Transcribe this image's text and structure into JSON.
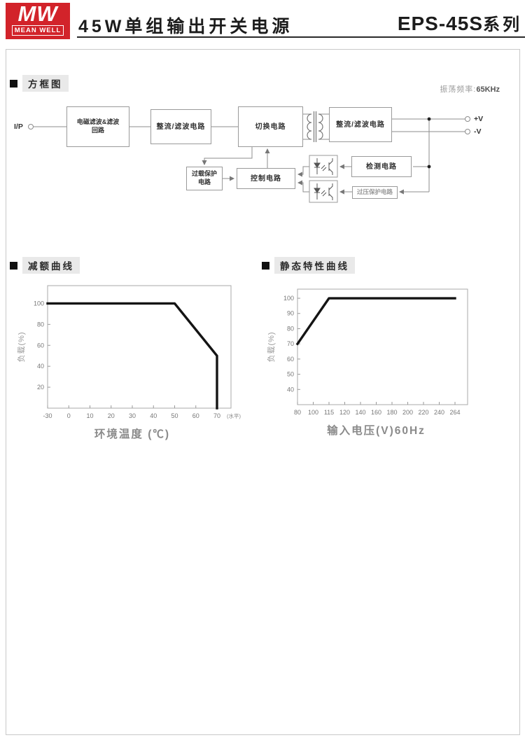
{
  "page": {
    "accent_red": "#d2232a",
    "frame_border": "#c9c9c9"
  },
  "header": {
    "logo": {
      "monogram": "MW",
      "name": "MEAN WELL"
    },
    "title": "45W单组输出开关电源",
    "series_model": "EPS-45S",
    "series_suffix": "系列"
  },
  "sections": {
    "block_diagram": "方框图"
  },
  "diagram": {
    "osc_freq_label": "振荡频率:",
    "osc_freq_value": "65KHz",
    "input_label": "I/P",
    "blocks": {
      "emi_line1": "电磁滤波&滤波",
      "emi_line2": "回路",
      "rectifier_filter_1": "整流/滤波电路",
      "switching": "切换电路",
      "rectifier_filter_2": "整流/滤波电路",
      "overload_line1": "过载保护",
      "overload_line2": "电路",
      "control": "控制电路",
      "detection": "检测电路",
      "ovp": "过压保护电路"
    },
    "output_pos": "+V",
    "output_neg": "-V"
  },
  "chart_data": [
    {
      "type": "line",
      "title": "减额曲线",
      "xlabel": "环境温度 (℃)",
      "ylabel": "负载(%)",
      "xticks": [
        -30,
        0,
        10,
        20,
        30,
        40,
        50,
        60,
        70
      ],
      "xtick_suffix": "(水平)",
      "yticks": [
        20,
        40,
        60,
        80,
        100
      ],
      "ylim": [
        0,
        117
      ],
      "grid": false,
      "legend": false,
      "series": [
        {
          "name": "load_vs_ambient_temp",
          "points": [
            [
              -30,
              100
            ],
            [
              50,
              100
            ],
            [
              70,
              50
            ],
            [
              70,
              0
            ]
          ]
        }
      ]
    },
    {
      "type": "line",
      "title": "静态特性曲线",
      "xlabel": "输入电压(V)60Hz",
      "ylabel": "负载(%)",
      "xticks": [
        80,
        100,
        115,
        120,
        140,
        160,
        180,
        200,
        220,
        240,
        264
      ],
      "xtick_suffix": "",
      "yticks": [
        40,
        50,
        60,
        70,
        80,
        90,
        100
      ],
      "ylim": [
        30,
        106
      ],
      "grid": false,
      "legend": false,
      "series": [
        {
          "name": "load_vs_input_voltage",
          "points": [
            [
              80,
              70
            ],
            [
              115,
              100
            ],
            [
              264,
              100
            ]
          ]
        }
      ]
    }
  ]
}
